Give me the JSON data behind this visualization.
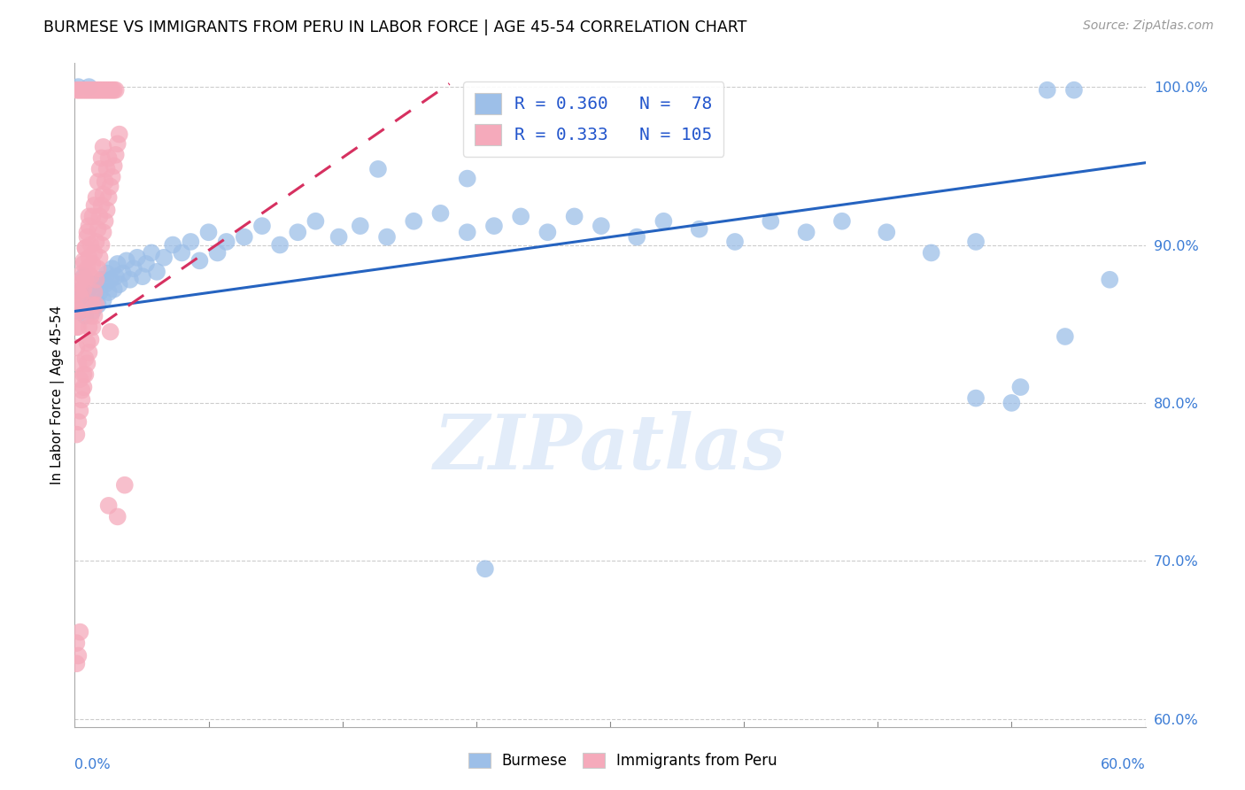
{
  "title": "BURMESE VS IMMIGRANTS FROM PERU IN LABOR FORCE | AGE 45-54 CORRELATION CHART",
  "source": "Source: ZipAtlas.com",
  "ylabel": "In Labor Force | Age 45-54",
  "xmin": 0.0,
  "xmax": 0.6,
  "ymin": 0.595,
  "ymax": 1.015,
  "yticks": [
    0.6,
    0.7,
    0.8,
    0.9,
    1.0
  ],
  "ytick_labels": [
    "60.0%",
    "70.0%",
    "80.0%",
    "90.0%",
    "100.0%"
  ],
  "xtick_positions": [
    0.0,
    0.075,
    0.15,
    0.225,
    0.3,
    0.375,
    0.45,
    0.525,
    0.6
  ],
  "blue_R": 0.36,
  "blue_N": 78,
  "pink_R": 0.333,
  "pink_N": 105,
  "blue_color": "#9dbfe8",
  "pink_color": "#f5aabb",
  "blue_line_color": "#2563c0",
  "pink_line_color": "#d63060",
  "blue_trend_x": [
    0.0,
    0.6
  ],
  "blue_trend_y": [
    0.858,
    0.952
  ],
  "pink_trend_x": [
    0.0,
    0.21
  ],
  "pink_trend_y": [
    0.838,
    1.002
  ],
  "blue_points": [
    [
      0.002,
      0.865
    ],
    [
      0.003,
      0.858
    ],
    [
      0.004,
      0.872
    ],
    [
      0.005,
      0.88
    ],
    [
      0.006,
      0.855
    ],
    [
      0.007,
      0.87
    ],
    [
      0.008,
      0.862
    ],
    [
      0.009,
      0.875
    ],
    [
      0.01,
      0.858
    ],
    [
      0.011,
      0.868
    ],
    [
      0.012,
      0.875
    ],
    [
      0.013,
      0.862
    ],
    [
      0.014,
      0.87
    ],
    [
      0.015,
      0.878
    ],
    [
      0.016,
      0.865
    ],
    [
      0.017,
      0.875
    ],
    [
      0.018,
      0.882
    ],
    [
      0.019,
      0.87
    ],
    [
      0.02,
      0.878
    ],
    [
      0.021,
      0.885
    ],
    [
      0.022,
      0.872
    ],
    [
      0.023,
      0.88
    ],
    [
      0.024,
      0.888
    ],
    [
      0.025,
      0.875
    ],
    [
      0.027,
      0.882
    ],
    [
      0.029,
      0.89
    ],
    [
      0.031,
      0.878
    ],
    [
      0.033,
      0.885
    ],
    [
      0.035,
      0.892
    ],
    [
      0.038,
      0.88
    ],
    [
      0.04,
      0.888
    ],
    [
      0.043,
      0.895
    ],
    [
      0.046,
      0.883
    ],
    [
      0.05,
      0.892
    ],
    [
      0.055,
      0.9
    ],
    [
      0.06,
      0.895
    ],
    [
      0.065,
      0.902
    ],
    [
      0.07,
      0.89
    ],
    [
      0.075,
      0.908
    ],
    [
      0.08,
      0.895
    ],
    [
      0.085,
      0.902
    ],
    [
      0.095,
      0.905
    ],
    [
      0.105,
      0.912
    ],
    [
      0.115,
      0.9
    ],
    [
      0.125,
      0.908
    ],
    [
      0.135,
      0.915
    ],
    [
      0.148,
      0.905
    ],
    [
      0.16,
      0.912
    ],
    [
      0.175,
      0.905
    ],
    [
      0.19,
      0.915
    ],
    [
      0.205,
      0.92
    ],
    [
      0.22,
      0.908
    ],
    [
      0.235,
      0.912
    ],
    [
      0.25,
      0.918
    ],
    [
      0.265,
      0.908
    ],
    [
      0.28,
      0.918
    ],
    [
      0.295,
      0.912
    ],
    [
      0.315,
      0.905
    ],
    [
      0.33,
      0.915
    ],
    [
      0.35,
      0.91
    ],
    [
      0.37,
      0.902
    ],
    [
      0.39,
      0.915
    ],
    [
      0.41,
      0.908
    ],
    [
      0.43,
      0.915
    ],
    [
      0.455,
      0.908
    ],
    [
      0.48,
      0.895
    ],
    [
      0.505,
      0.902
    ],
    [
      0.53,
      0.81
    ],
    [
      0.555,
      0.842
    ],
    [
      0.58,
      0.878
    ],
    [
      0.002,
      1.0
    ],
    [
      0.008,
      1.0
    ],
    [
      0.545,
      0.998
    ],
    [
      0.56,
      0.998
    ],
    [
      0.17,
      0.948
    ],
    [
      0.22,
      0.942
    ],
    [
      0.505,
      0.803
    ],
    [
      0.525,
      0.8
    ],
    [
      0.23,
      0.695
    ]
  ],
  "pink_points": [
    [
      0.001,
      0.86
    ],
    [
      0.002,
      0.848
    ],
    [
      0.002,
      0.87
    ],
    [
      0.003,
      0.858
    ],
    [
      0.003,
      0.875
    ],
    [
      0.004,
      0.865
    ],
    [
      0.004,
      0.882
    ],
    [
      0.005,
      0.872
    ],
    [
      0.005,
      0.89
    ],
    [
      0.006,
      0.878
    ],
    [
      0.006,
      0.898
    ],
    [
      0.007,
      0.885
    ],
    [
      0.007,
      0.905
    ],
    [
      0.008,
      0.892
    ],
    [
      0.008,
      0.912
    ],
    [
      0.009,
      0.88
    ],
    [
      0.009,
      0.9
    ],
    [
      0.01,
      0.888
    ],
    [
      0.01,
      0.918
    ],
    [
      0.011,
      0.895
    ],
    [
      0.011,
      0.925
    ],
    [
      0.012,
      0.902
    ],
    [
      0.012,
      0.93
    ],
    [
      0.013,
      0.91
    ],
    [
      0.013,
      0.94
    ],
    [
      0.014,
      0.918
    ],
    [
      0.014,
      0.948
    ],
    [
      0.015,
      0.925
    ],
    [
      0.015,
      0.955
    ],
    [
      0.016,
      0.932
    ],
    [
      0.016,
      0.962
    ],
    [
      0.017,
      0.94
    ],
    [
      0.018,
      0.948
    ],
    [
      0.019,
      0.955
    ],
    [
      0.02,
      0.845
    ],
    [
      0.001,
      0.835
    ],
    [
      0.002,
      0.825
    ],
    [
      0.003,
      0.815
    ],
    [
      0.004,
      0.808
    ],
    [
      0.005,
      0.818
    ],
    [
      0.006,
      0.828
    ],
    [
      0.007,
      0.838
    ],
    [
      0.008,
      0.848
    ],
    [
      0.009,
      0.855
    ],
    [
      0.01,
      0.862
    ],
    [
      0.011,
      0.87
    ],
    [
      0.012,
      0.878
    ],
    [
      0.013,
      0.885
    ],
    [
      0.014,
      0.892
    ],
    [
      0.015,
      0.9
    ],
    [
      0.016,
      0.908
    ],
    [
      0.017,
      0.915
    ],
    [
      0.018,
      0.922
    ],
    [
      0.019,
      0.93
    ],
    [
      0.02,
      0.937
    ],
    [
      0.021,
      0.943
    ],
    [
      0.022,
      0.95
    ],
    [
      0.023,
      0.957
    ],
    [
      0.024,
      0.964
    ],
    [
      0.025,
      0.97
    ],
    [
      0.001,
      0.78
    ],
    [
      0.002,
      0.788
    ],
    [
      0.003,
      0.795
    ],
    [
      0.004,
      0.802
    ],
    [
      0.005,
      0.81
    ],
    [
      0.006,
      0.818
    ],
    [
      0.007,
      0.825
    ],
    [
      0.008,
      0.832
    ],
    [
      0.009,
      0.84
    ],
    [
      0.01,
      0.848
    ],
    [
      0.011,
      0.855
    ],
    [
      0.012,
      0.862
    ],
    [
      0.001,
      0.848
    ],
    [
      0.002,
      0.858
    ],
    [
      0.003,
      0.868
    ],
    [
      0.004,
      0.878
    ],
    [
      0.005,
      0.888
    ],
    [
      0.006,
      0.898
    ],
    [
      0.007,
      0.908
    ],
    [
      0.008,
      0.918
    ],
    [
      0.001,
      0.998
    ],
    [
      0.002,
      0.998
    ],
    [
      0.003,
      0.998
    ],
    [
      0.004,
      0.998
    ],
    [
      0.005,
      0.998
    ],
    [
      0.006,
      0.998
    ],
    [
      0.007,
      0.998
    ],
    [
      0.008,
      0.998
    ],
    [
      0.009,
      0.998
    ],
    [
      0.01,
      0.998
    ],
    [
      0.011,
      0.998
    ],
    [
      0.012,
      0.998
    ],
    [
      0.013,
      0.998
    ],
    [
      0.014,
      0.998
    ],
    [
      0.015,
      0.998
    ],
    [
      0.016,
      0.998
    ],
    [
      0.017,
      0.998
    ],
    [
      0.018,
      0.998
    ],
    [
      0.019,
      0.998
    ],
    [
      0.02,
      0.998
    ],
    [
      0.021,
      0.998
    ],
    [
      0.022,
      0.998
    ],
    [
      0.023,
      0.998
    ],
    [
      0.001,
      0.648
    ],
    [
      0.003,
      0.655
    ],
    [
      0.001,
      0.635
    ],
    [
      0.002,
      0.64
    ],
    [
      0.019,
      0.735
    ],
    [
      0.024,
      0.728
    ],
    [
      0.028,
      0.748
    ]
  ]
}
